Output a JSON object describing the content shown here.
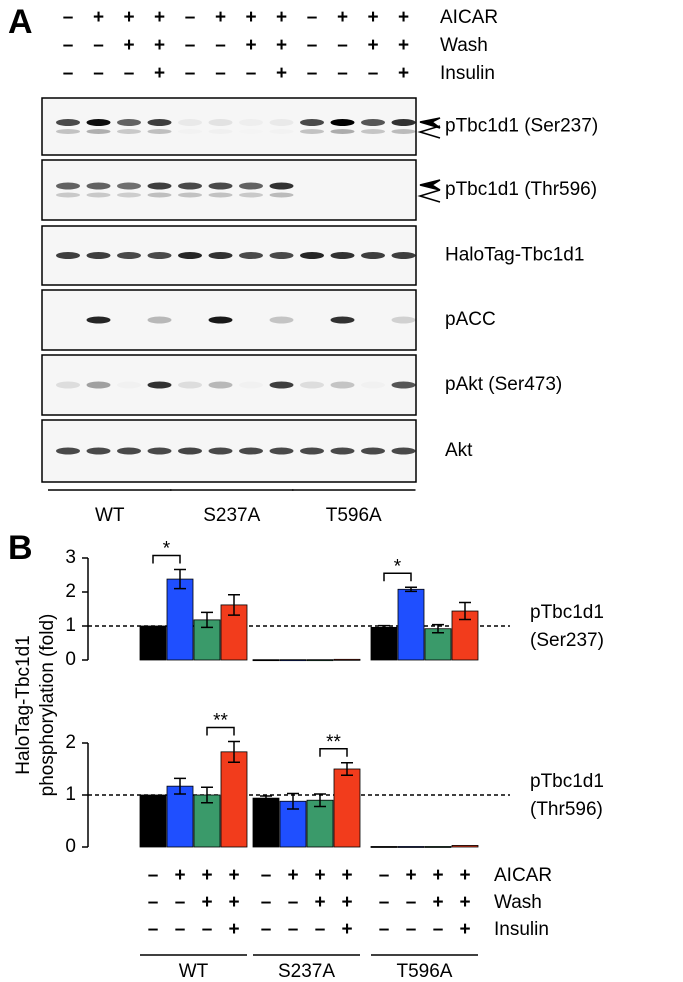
{
  "panel_a": {
    "label": "A",
    "lane_colors": [
      "#000000",
      "#1a1aff",
      "#1a9a4a",
      "#ff1a1a"
    ],
    "conditions": [
      {
        "name": "AICAR",
        "signs": [
          "–",
          "+",
          "+",
          "+",
          "–",
          "+",
          "+",
          "+",
          "–",
          "+",
          "+",
          "+"
        ]
      },
      {
        "name": "Wash",
        "signs": [
          "–",
          "–",
          "+",
          "+",
          "–",
          "–",
          "+",
          "+",
          "–",
          "–",
          "+",
          "+"
        ]
      },
      {
        "name": "Insulin",
        "signs": [
          "–",
          "–",
          "–",
          "+",
          "–",
          "–",
          "–",
          "+",
          "–",
          "–",
          "–",
          "+"
        ]
      }
    ],
    "blots": [
      "pTbc1d1 (Ser237)",
      "pTbc1d1 (Thr596)",
      "HaloTag-Tbc1d1",
      "pACC",
      "pAkt (Ser473)",
      "Akt"
    ],
    "groups": [
      "WT",
      "S237A",
      "T596A"
    ]
  },
  "panel_b_label": "B",
  "chart_data": [
    {
      "type": "bar",
      "y_label": [
        "HaloTag-Tbc1d1",
        "phosphorylation (fold)"
      ],
      "side_label": [
        "pTbc1d1",
        "(Ser237)"
      ],
      "categories": [
        "WT",
        "S237A",
        "T596A"
      ],
      "ylim": [
        0,
        3
      ],
      "yticks": [
        0,
        1,
        2,
        3
      ],
      "refline": 1,
      "series": [
        {
          "color": "#000000",
          "values": [
            1,
            0.01,
            0.96
          ],
          "errors": [
            0,
            0,
            0.05
          ]
        },
        {
          "color": "#1f4fff",
          "values": [
            2.38,
            0.01,
            2.08
          ],
          "errors": [
            0.28,
            0,
            0.06
          ]
        },
        {
          "color": "#3a9a6a",
          "values": [
            1.18,
            0.01,
            0.92
          ],
          "errors": [
            0.22,
            0,
            0.12
          ]
        },
        {
          "color": "#f23c1c",
          "values": [
            1.62,
            0.02,
            1.44
          ],
          "errors": [
            0.3,
            0,
            0.25
          ]
        }
      ],
      "annotations": [
        {
          "text": "*",
          "group": 0,
          "from": 0,
          "to": 1
        },
        {
          "text": "*",
          "group": 2,
          "from": 0,
          "to": 1
        }
      ]
    },
    {
      "type": "bar",
      "side_label": [
        "pTbc1d1",
        "(Thr596)"
      ],
      "categories": [
        "WT",
        "S237A",
        "T596A"
      ],
      "ylim": [
        0,
        2
      ],
      "yticks": [
        0,
        1,
        2
      ],
      "refline": 1,
      "series": [
        {
          "color": "#000000",
          "values": [
            1,
            0.94,
            0.01
          ],
          "errors": [
            0,
            0.04,
            0
          ]
        },
        {
          "color": "#1f4fff",
          "values": [
            1.17,
            0.88,
            0.01
          ],
          "errors": [
            0.15,
            0.15,
            0
          ]
        },
        {
          "color": "#3a9a6a",
          "values": [
            1.0,
            0.9,
            0.01
          ],
          "errors": [
            0.15,
            0.12,
            0
          ]
        },
        {
          "color": "#f23c1c",
          "values": [
            1.83,
            1.5,
            0.03
          ],
          "errors": [
            0.2,
            0.12,
            0
          ]
        }
      ],
      "annotations": [
        {
          "text": "**",
          "group": 0,
          "from": 2,
          "to": 3
        },
        {
          "text": "**",
          "group": 1,
          "from": 2,
          "to": 3
        }
      ]
    }
  ]
}
